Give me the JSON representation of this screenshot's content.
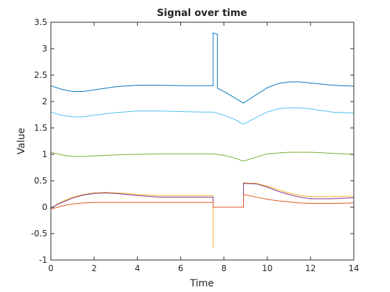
{
  "chart_data": {
    "type": "line",
    "title": "Signal over time",
    "xlabel": "Time",
    "ylabel": "Value",
    "xlim": [
      0,
      14
    ],
    "ylim": [
      -1,
      3.5
    ],
    "xticks": [
      0,
      2,
      4,
      6,
      8,
      10,
      12,
      14
    ],
    "yticks": [
      -1,
      -0.5,
      0,
      0.5,
      1,
      1.5,
      2,
      2.5,
      3,
      3.5
    ],
    "xtick_labels": [
      "0",
      "2",
      "4",
      "6",
      "8",
      "10",
      "12",
      "14"
    ],
    "ytick_labels": [
      "-1",
      "-0.5",
      "0",
      "0.5",
      "1",
      "1.5",
      "2",
      "2.5",
      "3",
      "3.5"
    ],
    "grid": false,
    "series": [
      {
        "color": "#0072BD",
        "x": [
          0,
          0.5,
          1,
          1.5,
          2,
          3,
          4,
          5,
          6,
          7,
          7.5,
          7.5,
          7.7,
          7.7,
          8,
          8.5,
          8.9,
          9.5,
          10,
          10.5,
          11,
          11.5,
          12,
          13,
          14
        ],
        "y": [
          2.3,
          2.23,
          2.19,
          2.19,
          2.22,
          2.28,
          2.31,
          2.31,
          2.3,
          2.3,
          2.3,
          3.3,
          3.27,
          2.25,
          2.19,
          2.07,
          1.97,
          2.13,
          2.26,
          2.34,
          2.37,
          2.37,
          2.35,
          2.31,
          2.29
        ]
      },
      {
        "color": "#4DBEEE",
        "x": [
          0,
          0.5,
          1,
          1.5,
          2,
          3,
          4,
          5,
          6,
          7,
          7.5,
          8,
          8.5,
          8.9,
          9.5,
          10,
          10.5,
          11,
          11.5,
          12,
          13,
          14
        ],
        "y": [
          1.8,
          1.74,
          1.71,
          1.71,
          1.74,
          1.79,
          1.82,
          1.82,
          1.81,
          1.8,
          1.8,
          1.74,
          1.66,
          1.57,
          1.7,
          1.8,
          1.86,
          1.88,
          1.88,
          1.86,
          1.8,
          1.78
        ]
      },
      {
        "color": "#77AC30",
        "x": [
          0,
          0.5,
          1,
          1.5,
          2,
          3,
          4,
          5,
          6,
          7,
          7.5,
          8,
          8.5,
          8.9,
          9.5,
          10,
          11,
          12,
          13,
          14
        ],
        "y": [
          1.04,
          0.99,
          0.96,
          0.96,
          0.97,
          0.99,
          1.0,
          1.01,
          1.01,
          1.01,
          1.01,
          0.98,
          0.93,
          0.87,
          0.95,
          1.01,
          1.04,
          1.04,
          1.02,
          1.0
        ]
      },
      {
        "color": "#EDB120",
        "x": [
          0,
          0.3,
          0.7,
          1,
          1.5,
          2,
          2.5,
          3,
          3.5,
          4,
          5,
          6,
          7,
          7.5,
          7.5,
          7.5,
          7.5,
          8.9,
          8.9,
          9.5,
          10,
          10.5,
          11,
          11.5,
          12,
          13,
          14
        ],
        "y": [
          -0.02,
          0.06,
          0.14,
          0.19,
          0.24,
          0.27,
          0.28,
          0.27,
          0.26,
          0.24,
          0.22,
          0.22,
          0.22,
          0.22,
          -0.77,
          0.0,
          0.0,
          0.0,
          0.46,
          0.45,
          0.4,
          0.33,
          0.27,
          0.22,
          0.2,
          0.2,
          0.21
        ]
      },
      {
        "color": "#7E2F8E",
        "x": [
          0,
          0.3,
          0.7,
          1,
          1.5,
          2,
          2.5,
          3,
          3.5,
          4,
          5,
          6,
          7,
          7.5,
          7.5,
          8.9,
          8.9,
          9.5,
          10,
          10.5,
          11,
          11.5,
          12,
          13,
          14
        ],
        "y": [
          -0.02,
          0.05,
          0.12,
          0.17,
          0.23,
          0.26,
          0.27,
          0.26,
          0.24,
          0.22,
          0.19,
          0.19,
          0.19,
          0.19,
          0.0,
          0.0,
          0.45,
          0.44,
          0.38,
          0.3,
          0.24,
          0.19,
          0.16,
          0.16,
          0.18
        ]
      },
      {
        "color": "#D95319",
        "x": [
          0,
          0.3,
          0.7,
          1,
          1.5,
          2,
          2.5,
          3,
          4,
          5,
          6,
          7,
          7.5,
          7.5,
          8.9,
          8.9,
          9.5,
          10,
          10.5,
          11,
          11.5,
          12,
          13,
          14
        ],
        "y": [
          -0.04,
          0.0,
          0.04,
          0.06,
          0.08,
          0.09,
          0.09,
          0.09,
          0.09,
          0.09,
          0.09,
          0.09,
          0.09,
          0.0,
          0.0,
          0.24,
          0.19,
          0.15,
          0.12,
          0.1,
          0.08,
          0.07,
          0.07,
          0.08
        ]
      }
    ]
  }
}
